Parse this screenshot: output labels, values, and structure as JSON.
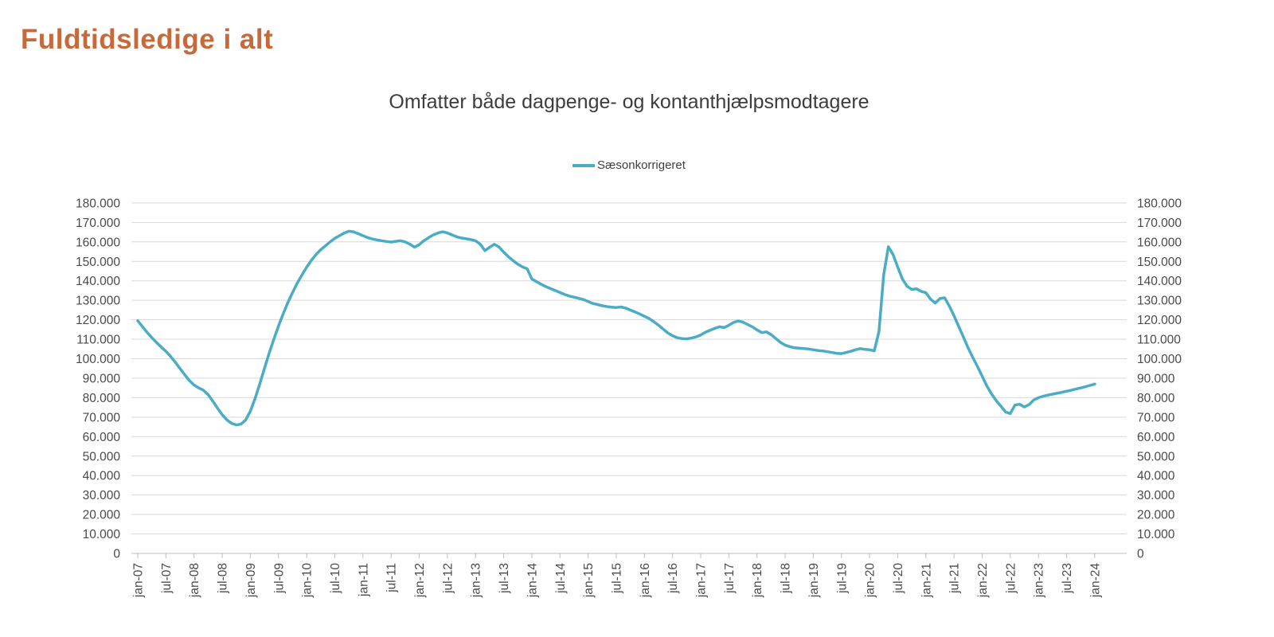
{
  "page": {
    "title": "Fuldtidsledige i alt",
    "title_color": "#C66A3B"
  },
  "chart": {
    "subtitle": "Omfatter både dagpenge- og kontanthjælpsmodtagere",
    "legend": {
      "label": "Sæsonkorrigeret",
      "color": "#4BACC6"
    }
  },
  "chart_data": {
    "type": "line",
    "title": "Omfatter både dagpenge- og kontanthjælpsmodtagere",
    "legend_entries": [
      "Sæsonkorrigeret"
    ],
    "legend_position": "top-center",
    "grid": "horizontal",
    "dual_y_axis": true,
    "ylim": [
      0,
      180000
    ],
    "y_interval": 10000,
    "y_tick_labels": [
      "180.000",
      "170.000",
      "160.000",
      "150.000",
      "140.000",
      "130.000",
      "120.000",
      "110.000",
      "100.000",
      "90.000",
      "80.000",
      "70.000",
      "60.000",
      "50.000",
      "40.000",
      "30.000",
      "20.000",
      "10.000",
      "0"
    ],
    "x_unit": "month",
    "x_start": "jan-07",
    "x_end": "jan-24",
    "x_tick_interval_months": 6,
    "x_tick_labels": [
      "jan-07",
      "jul-07",
      "jan-08",
      "jul-08",
      "jan-09",
      "jul-09",
      "jan-10",
      "jul-10",
      "jan-11",
      "jul-11",
      "jan-12",
      "jul-12",
      "jan-13",
      "jul-13",
      "jan-14",
      "jul-14",
      "jan-15",
      "jul-15",
      "jan-16",
      "jul-16",
      "jan-17",
      "jul-17",
      "jan-18",
      "jul-18",
      "jan-19",
      "jul-19",
      "jan-20",
      "jul-20",
      "jan-21",
      "jul-21",
      "jan-22",
      "jul-22",
      "jan-23",
      "jul-23",
      "jan-24"
    ],
    "series": [
      {
        "name": "Sæsonkorrigeret",
        "color": "#4BACC6",
        "values": [
          119500,
          116500,
          113500,
          110800,
          108300,
          106000,
          103800,
          101200,
          98200,
          95000,
          91800,
          88800,
          86500,
          85000,
          83800,
          81500,
          78200,
          74600,
          71200,
          68600,
          66800,
          66000,
          66400,
          68500,
          73000,
          79500,
          87000,
          95000,
          102800,
          110000,
          116800,
          123000,
          128800,
          134000,
          138800,
          143000,
          147000,
          150500,
          153500,
          156000,
          158000,
          160000,
          161800,
          163200,
          164500,
          165500,
          165200,
          164200,
          163200,
          162200,
          161500,
          161000,
          160600,
          160200,
          159900,
          160300,
          160600,
          160000,
          158800,
          157300,
          158600,
          160600,
          162200,
          163600,
          164600,
          165200,
          164600,
          163600,
          162600,
          162000,
          161600,
          161200,
          160600,
          158800,
          155500,
          157200,
          158800,
          157400,
          154800,
          152400,
          150400,
          148600,
          147200,
          146200,
          141000,
          139600,
          138200,
          137000,
          136000,
          135000,
          134000,
          133000,
          132200,
          131600,
          131000,
          130400,
          129400,
          128400,
          127800,
          127200,
          126800,
          126500,
          126300,
          126600,
          126000,
          125000,
          124000,
          123000,
          121800,
          120600,
          119000,
          117200,
          115200,
          113200,
          111800,
          110800,
          110300,
          110200,
          110600,
          111200,
          112200,
          113600,
          114600,
          115600,
          116400,
          116000,
          117200,
          118600,
          119400,
          118800,
          117600,
          116400,
          114800,
          113400,
          113800,
          112400,
          110400,
          108400,
          107000,
          106200,
          105600,
          105400,
          105200,
          105000,
          104600,
          104200,
          104000,
          103600,
          103200,
          102800,
          102600,
          103200,
          103800,
          104600,
          105200,
          104800,
          104600,
          104000,
          114000,
          143000,
          157500,
          153500,
          147000,
          141000,
          137200,
          135600,
          135900,
          134600,
          133900,
          130600,
          128600,
          130900,
          131300,
          127000,
          122000,
          116600,
          111200,
          105600,
          100600,
          96000,
          91000,
          86000,
          81900,
          78400,
          75600,
          72600,
          71800,
          76200,
          76600,
          75200,
          76400,
          78800,
          80000,
          80700,
          81300,
          81800,
          82300,
          82800,
          83300,
          83800,
          84400,
          85000,
          85600,
          86300,
          87000
        ]
      }
    ]
  }
}
